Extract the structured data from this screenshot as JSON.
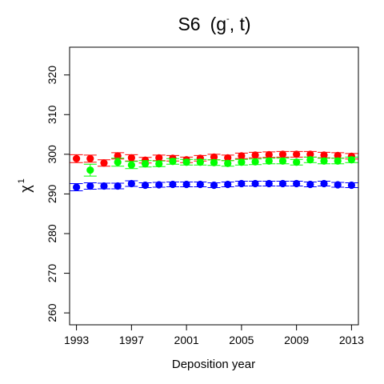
{
  "chart_data": {
    "type": "scatter",
    "title_main": "S6",
    "title_args": "(g",
    "title_sup": "-",
    "title_rest": ", t)",
    "xlabel": "Deposition year",
    "ylabel_symbol": "χ",
    "ylabel_sup": "1",
    "xlim": [
      1992.5,
      2013.5
    ],
    "ylim": [
      257,
      327
    ],
    "xticks": [
      1993,
      1997,
      2001,
      2005,
      2009,
      2013
    ],
    "yticks": [
      260,
      270,
      280,
      290,
      300,
      310,
      320
    ],
    "grid": false,
    "series": [
      {
        "color": "#ff0000",
        "x": [
          1993,
          1994,
          1995,
          1996,
          1997,
          1998,
          1999,
          2000,
          2001,
          2002,
          2003,
          2004,
          2005,
          2006,
          2007,
          2008,
          2009,
          2010,
          2011,
          2012,
          2013
        ],
        "y": [
          298.9,
          298.9,
          297.8,
          299.6,
          299.1,
          298.5,
          299.1,
          299.0,
          298.6,
          299.0,
          299.3,
          299.1,
          299.6,
          299.8,
          299.9,
          300.0,
          300.0,
          300.0,
          299.8,
          299.7,
          299.5
        ],
        "err": [
          1.0,
          0.9,
          0.8,
          0.8,
          0.8,
          0.7,
          0.7,
          0.7,
          0.7,
          0.7,
          0.7,
          0.7,
          0.7,
          0.7,
          0.7,
          0.7,
          0.7,
          0.7,
          0.7,
          0.7,
          0.7
        ]
      },
      {
        "color": "#00ff00",
        "x": [
          1994,
          1996,
          1997,
          1998,
          1999,
          2000,
          2001,
          2002,
          2003,
          2004,
          2005,
          2006,
          2007,
          2008,
          2009,
          2010,
          2011,
          2012,
          2013
        ],
        "y": [
          296.0,
          298.0,
          297.3,
          297.6,
          297.6,
          298.2,
          298.0,
          298.0,
          297.9,
          297.7,
          298.0,
          298.1,
          298.3,
          298.3,
          298.0,
          298.6,
          298.3,
          298.3,
          298.6
        ],
        "err": [
          1.5,
          1.0,
          0.9,
          0.8,
          0.7,
          0.7,
          0.7,
          0.7,
          0.7,
          0.7,
          0.7,
          0.7,
          0.7,
          0.7,
          0.7,
          0.7,
          0.7,
          0.7,
          0.7
        ]
      },
      {
        "color": "#0000ff",
        "x": [
          1993,
          1994,
          1995,
          1996,
          1997,
          1998,
          1999,
          2000,
          2001,
          2002,
          2003,
          2004,
          2005,
          2006,
          2007,
          2008,
          2009,
          2010,
          2011,
          2012,
          2013
        ],
        "y": [
          291.7,
          292.0,
          292.0,
          292.0,
          292.6,
          292.2,
          292.3,
          292.4,
          292.4,
          292.4,
          292.2,
          292.4,
          292.6,
          292.6,
          292.6,
          292.6,
          292.6,
          292.4,
          292.6,
          292.3,
          292.2
        ],
        "err": [
          0.9,
          0.8,
          0.7,
          0.7,
          0.7,
          0.6,
          0.6,
          0.6,
          0.6,
          0.6,
          0.6,
          0.6,
          0.6,
          0.6,
          0.6,
          0.6,
          0.6,
          0.6,
          0.6,
          0.6,
          0.6
        ]
      }
    ]
  }
}
